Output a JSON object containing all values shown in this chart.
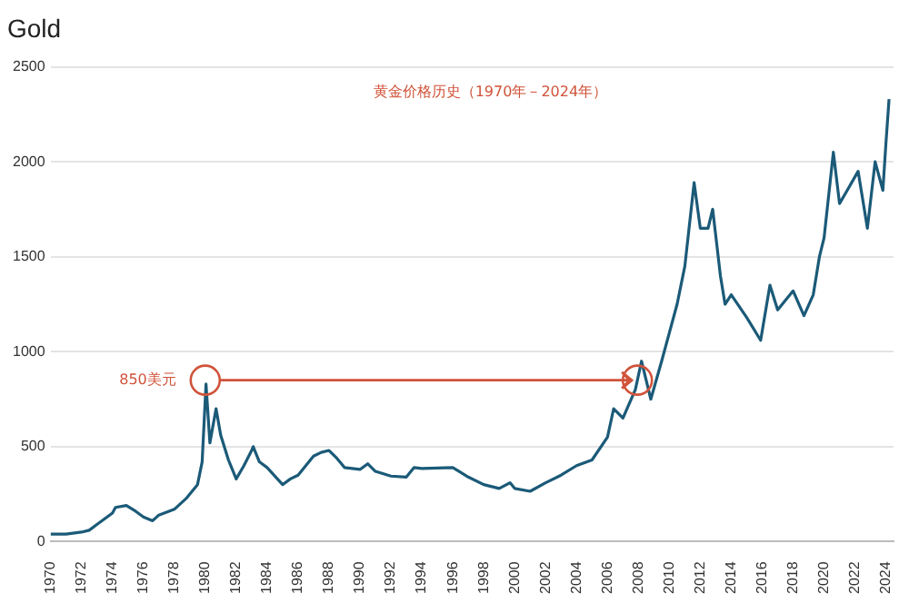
{
  "chart_data": {
    "type": "line",
    "title": "Gold",
    "annotations": [
      "黄金价格历史（1970年－2024年）",
      {
        "text": "850美元",
        "x": 1980,
        "y": 850
      }
    ],
    "x": [
      1970,
      1971,
      1972,
      1972.5,
      1973,
      1973.5,
      1974,
      1974.2,
      1974.9,
      1975.5,
      1976,
      1976.6,
      1977,
      1978,
      1978.8,
      1979.5,
      1979.8,
      1980.05,
      1980.3,
      1980.7,
      1981,
      1981.5,
      1982,
      1982.5,
      1983,
      1983.1,
      1983.5,
      1984,
      1985,
      1985.5,
      1986,
      1987,
      1987.5,
      1988,
      1988.5,
      1989,
      1990,
      1990.5,
      1991,
      1992,
      1993,
      1993.5,
      1994,
      1996,
      1997,
      1998,
      1999,
      1999.7,
      2000,
      2001,
      2002,
      2003,
      2004,
      2005,
      2006,
      2006.4,
      2007,
      2007.8,
      2008.2,
      2008.8,
      2009.5,
      2010,
      2010.5,
      2011,
      2011.6,
      2012,
      2012.5,
      2012.8,
      2013.3,
      2013.6,
      2014,
      2015,
      2015.9,
      2016.5,
      2017,
      2018,
      2018.7,
      2019.3,
      2019.7,
      2020,
      2020.6,
      2021,
      2021.5,
      2022.2,
      2022.8,
      2023.3,
      2023.8,
      2024,
      2024.2
    ],
    "series": [
      {
        "color": "#1b5a78",
        "values": [
          40,
          40,
          50,
          60,
          90,
          120,
          150,
          180,
          190,
          160,
          130,
          110,
          140,
          170,
          230,
          300,
          420,
          830,
          520,
          700,
          560,
          430,
          330,
          400,
          480,
          500,
          420,
          390,
          300,
          330,
          350,
          450,
          470,
          480,
          440,
          390,
          380,
          410,
          370,
          345,
          340,
          390,
          385,
          390,
          340,
          300,
          280,
          310,
          280,
          265,
          310,
          350,
          400,
          430,
          550,
          700,
          650,
          800,
          950,
          750,
          950,
          1100,
          1250,
          1450,
          1890,
          1650,
          1650,
          1750,
          1400,
          1250,
          1300,
          1180,
          1060,
          1350,
          1220,
          1320,
          1190,
          1300,
          1500,
          1600,
          2050,
          1780,
          1850,
          1950,
          1650,
          2000,
          1850,
          2100,
          2330
        ]
      }
    ],
    "xlim": [
      1970,
      2024.5
    ],
    "xticks": [
      1970,
      1972,
      1974,
      1976,
      1978,
      1980,
      1982,
      1984,
      1986,
      1988,
      1990,
      1992,
      1994,
      1996,
      1998,
      2000,
      2002,
      2004,
      2006,
      2008,
      2010,
      2012,
      2014,
      2016,
      2018,
      2020,
      2022,
      2024
    ],
    "ylim": [
      0,
      2500
    ],
    "yticks": [
      0,
      500,
      1000,
      1500,
      2000,
      2500
    ],
    "grid": "y",
    "legend": false,
    "marker": "none",
    "line_style": "solid"
  }
}
